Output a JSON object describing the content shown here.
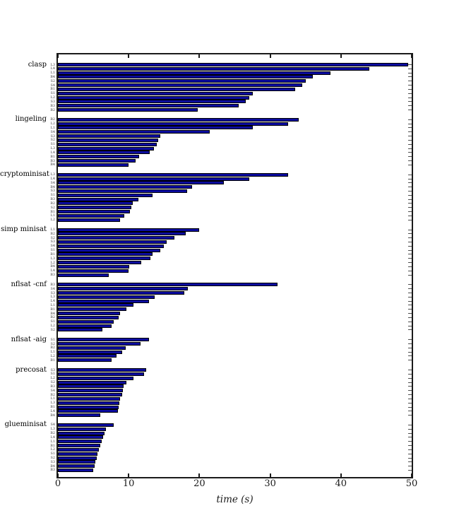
{
  "chart_data": {
    "type": "bar",
    "orientation": "horizontal",
    "title": "",
    "xlabel": "time (s)",
    "ylabel": "",
    "xlim": [
      0,
      50
    ],
    "x_ticks": [
      0,
      10,
      20,
      30,
      40,
      50
    ],
    "grid": false,
    "legend": false,
    "bar_color": "#0b0b9e",
    "bar_edge_color": "#000000",
    "axis_color": "#1a1a1a",
    "groups": [
      {
        "solver": "clasp",
        "bars": [
          {
            "label": "L3",
            "value": 49.5
          },
          {
            "label": "L4",
            "value": 44.0
          },
          {
            "label": "L1",
            "value": 38.5
          },
          {
            "label": "B4",
            "value": 36.0
          },
          {
            "label": "S2",
            "value": 35.0
          },
          {
            "label": "S4",
            "value": 34.5
          },
          {
            "label": "B1",
            "value": 33.5
          },
          {
            "label": "S1",
            "value": 27.5
          },
          {
            "label": "L2",
            "value": 27.0
          },
          {
            "label": "S3",
            "value": 26.5
          },
          {
            "label": "B3",
            "value": 25.5
          },
          {
            "label": "B2",
            "value": 19.8
          }
        ]
      },
      {
        "solver": "lingeling",
        "bars": [
          {
            "label": "B2",
            "value": 34.0
          },
          {
            "label": "L2",
            "value": 32.5
          },
          {
            "label": "L1",
            "value": 27.5
          },
          {
            "label": "S4",
            "value": 21.5
          },
          {
            "label": "S3",
            "value": 14.5
          },
          {
            "label": "S2",
            "value": 14.2
          },
          {
            "label": "S1",
            "value": 14.0
          },
          {
            "label": "L3",
            "value": 13.6
          },
          {
            "label": "L4",
            "value": 13.0
          },
          {
            "label": "B1",
            "value": 11.5
          },
          {
            "label": "B3",
            "value": 11.0
          },
          {
            "label": "B4",
            "value": 10.0
          }
        ]
      },
      {
        "solver": "cryptominisat",
        "bars": [
          {
            "label": "L3",
            "value": 32.5
          },
          {
            "label": "L4",
            "value": 27.0
          },
          {
            "label": "S4",
            "value": 23.5
          },
          {
            "label": "B4",
            "value": 19.0
          },
          {
            "label": "S3",
            "value": 18.3
          },
          {
            "label": "S1",
            "value": 13.4
          },
          {
            "label": "B3",
            "value": 11.4
          },
          {
            "label": "B2",
            "value": 10.6
          },
          {
            "label": "S2",
            "value": 10.4
          },
          {
            "label": "B1",
            "value": 10.2
          },
          {
            "label": "L1",
            "value": 9.4
          },
          {
            "label": "L2",
            "value": 8.8
          }
        ]
      },
      {
        "solver": "simp minisat",
        "bars": [
          {
            "label": "L1",
            "value": 20.0
          },
          {
            "label": "B2",
            "value": 18.1
          },
          {
            "label": "S2",
            "value": 16.5
          },
          {
            "label": "S3",
            "value": 15.4
          },
          {
            "label": "S4",
            "value": 15.0
          },
          {
            "label": "S1",
            "value": 14.5
          },
          {
            "label": "B1",
            "value": 13.4
          },
          {
            "label": "L3",
            "value": 13.1
          },
          {
            "label": "L2",
            "value": 11.8
          },
          {
            "label": "B4",
            "value": 10.1
          },
          {
            "label": "L4",
            "value": 10.0
          },
          {
            "label": "B3",
            "value": 7.2
          }
        ]
      },
      {
        "solver": "nflsat -cnf",
        "bars": [
          {
            "label": "B3",
            "value": 31.0
          },
          {
            "label": "S4",
            "value": 18.4
          },
          {
            "label": "S3",
            "value": 17.9
          },
          {
            "label": "L3",
            "value": 13.7
          },
          {
            "label": "L4",
            "value": 12.9
          },
          {
            "label": "L1",
            "value": 10.7
          },
          {
            "label": "B1",
            "value": 9.7
          },
          {
            "label": "B4",
            "value": 8.8
          },
          {
            "label": "B2",
            "value": 8.6
          },
          {
            "label": "S1",
            "value": 7.9
          },
          {
            "label": "L2",
            "value": 7.6
          },
          {
            "label": "S2",
            "value": 6.3
          }
        ]
      },
      {
        "solver": "nflsat -aig",
        "bars": [
          {
            "label": "S1",
            "value": 12.9
          },
          {
            "label": "S2",
            "value": 11.7
          },
          {
            "label": "B2",
            "value": 9.6
          },
          {
            "label": "L1",
            "value": 9.1
          },
          {
            "label": "L2",
            "value": 8.3
          },
          {
            "label": "B1",
            "value": 7.6
          }
        ]
      },
      {
        "solver": "precosat",
        "bars": [
          {
            "label": "S3",
            "value": 12.5
          },
          {
            "label": "S1",
            "value": 12.2
          },
          {
            "label": "L2",
            "value": 10.7
          },
          {
            "label": "S2",
            "value": 9.7
          },
          {
            "label": "B3",
            "value": 9.3
          },
          {
            "label": "S4",
            "value": 9.2
          },
          {
            "label": "B2",
            "value": 9.1
          },
          {
            "label": "L1",
            "value": 8.8
          },
          {
            "label": "L3",
            "value": 8.7
          },
          {
            "label": "B1",
            "value": 8.6
          },
          {
            "label": "L4",
            "value": 8.5
          },
          {
            "label": "B4",
            "value": 6.0
          }
        ]
      },
      {
        "solver": "glueminisat",
        "bars": [
          {
            "label": "S4",
            "value": 7.9
          },
          {
            "label": "L3",
            "value": 6.8
          },
          {
            "label": "B2",
            "value": 6.6
          },
          {
            "label": "L4",
            "value": 6.4
          },
          {
            "label": "L1",
            "value": 6.2
          },
          {
            "label": "B1",
            "value": 6.0
          },
          {
            "label": "L2",
            "value": 5.8
          },
          {
            "label": "S1",
            "value": 5.6
          },
          {
            "label": "S2",
            "value": 5.5
          },
          {
            "label": "S3",
            "value": 5.3
          },
          {
            "label": "B4",
            "value": 5.2
          },
          {
            "label": "B3",
            "value": 5.0
          }
        ]
      }
    ]
  }
}
